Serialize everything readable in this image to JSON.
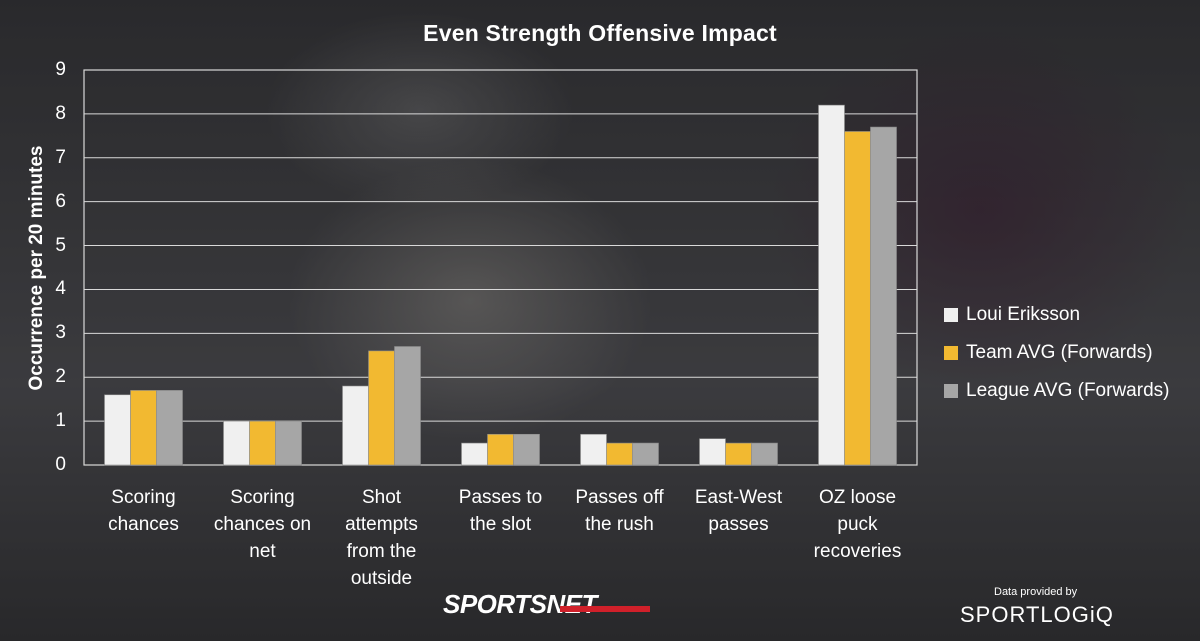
{
  "branding": {
    "network": "SPORTSNET",
    "data_credit_label": "Data provided by",
    "data_credit_name": "SPORTLOGiQ"
  },
  "chart_data": {
    "type": "bar",
    "title": "Even Strength Offensive Impact",
    "ylabel": "Occurrence per 20 minutes",
    "xlabel": "",
    "ylim": [
      0,
      9
    ],
    "yticks": [
      "0",
      "1",
      "2",
      "3",
      "4",
      "5",
      "6",
      "7",
      "8",
      "9"
    ],
    "grid": true,
    "legend_position": "right",
    "categories": [
      "Scoring chances",
      "Scoring chances on net",
      "Shot attempts from the outside",
      "Passes to the slot",
      "Passes off the rush",
      "East-West passes",
      "OZ loose puck recoveries"
    ],
    "series": [
      {
        "name": "Loui Eriksson",
        "color": "#f0f0f0",
        "values": [
          1.6,
          1.0,
          1.8,
          0.5,
          0.7,
          0.6,
          8.2
        ]
      },
      {
        "name": "Team AVG (Forwards)",
        "color": "#f2b931",
        "values": [
          1.7,
          1.0,
          2.6,
          0.7,
          0.5,
          0.5,
          7.6
        ]
      },
      {
        "name": "League AVG (Forwards)",
        "color": "#a6a6a6",
        "values": [
          1.7,
          1.0,
          2.7,
          0.7,
          0.5,
          0.5,
          7.7
        ]
      }
    ]
  }
}
